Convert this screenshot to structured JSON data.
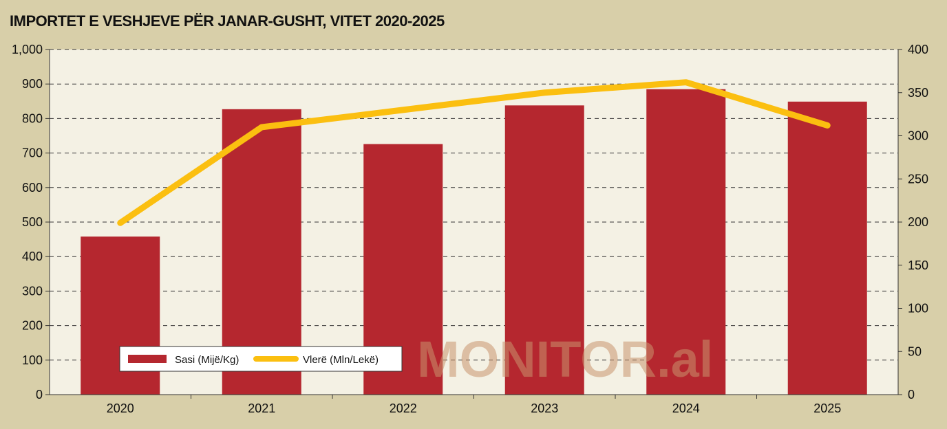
{
  "chart_data": {
    "type": "bar",
    "title": "IMPORTET E VESHJEVE PËR JANAR-GUSHT, VITET 2020-2025",
    "categories": [
      "2020",
      "2021",
      "2022",
      "2023",
      "2024",
      "2025"
    ],
    "series": [
      {
        "name": "Sasi (Mijë/Kg)",
        "type": "bar",
        "axis": "left",
        "color": "#b5272f",
        "values": [
          458,
          827,
          726,
          838,
          885,
          849
        ]
      },
      {
        "name": "Vlerë (Mln/Lekë)",
        "type": "line",
        "axis": "right",
        "color": "#fbbf10",
        "values": [
          199,
          310,
          330,
          350,
          362,
          312
        ]
      }
    ],
    "y_left": {
      "min": 0,
      "max": 1000,
      "ticks": [
        "0",
        "100",
        "200",
        "300",
        "400",
        "500",
        "600",
        "700",
        "800",
        "900",
        "1,000"
      ]
    },
    "y_right": {
      "min": 0,
      "max": 400,
      "ticks": [
        "0",
        "50",
        "100",
        "150",
        "200",
        "250",
        "300",
        "350",
        "400"
      ]
    },
    "grid": "dashed horizontal",
    "legend_position": "bottom-left",
    "watermark": "MONITOR.al",
    "colors": {
      "background": "#d8cfa9",
      "plot_area": "#f4f1e4",
      "bar": "#b5272f",
      "line": "#fbbf10"
    }
  }
}
